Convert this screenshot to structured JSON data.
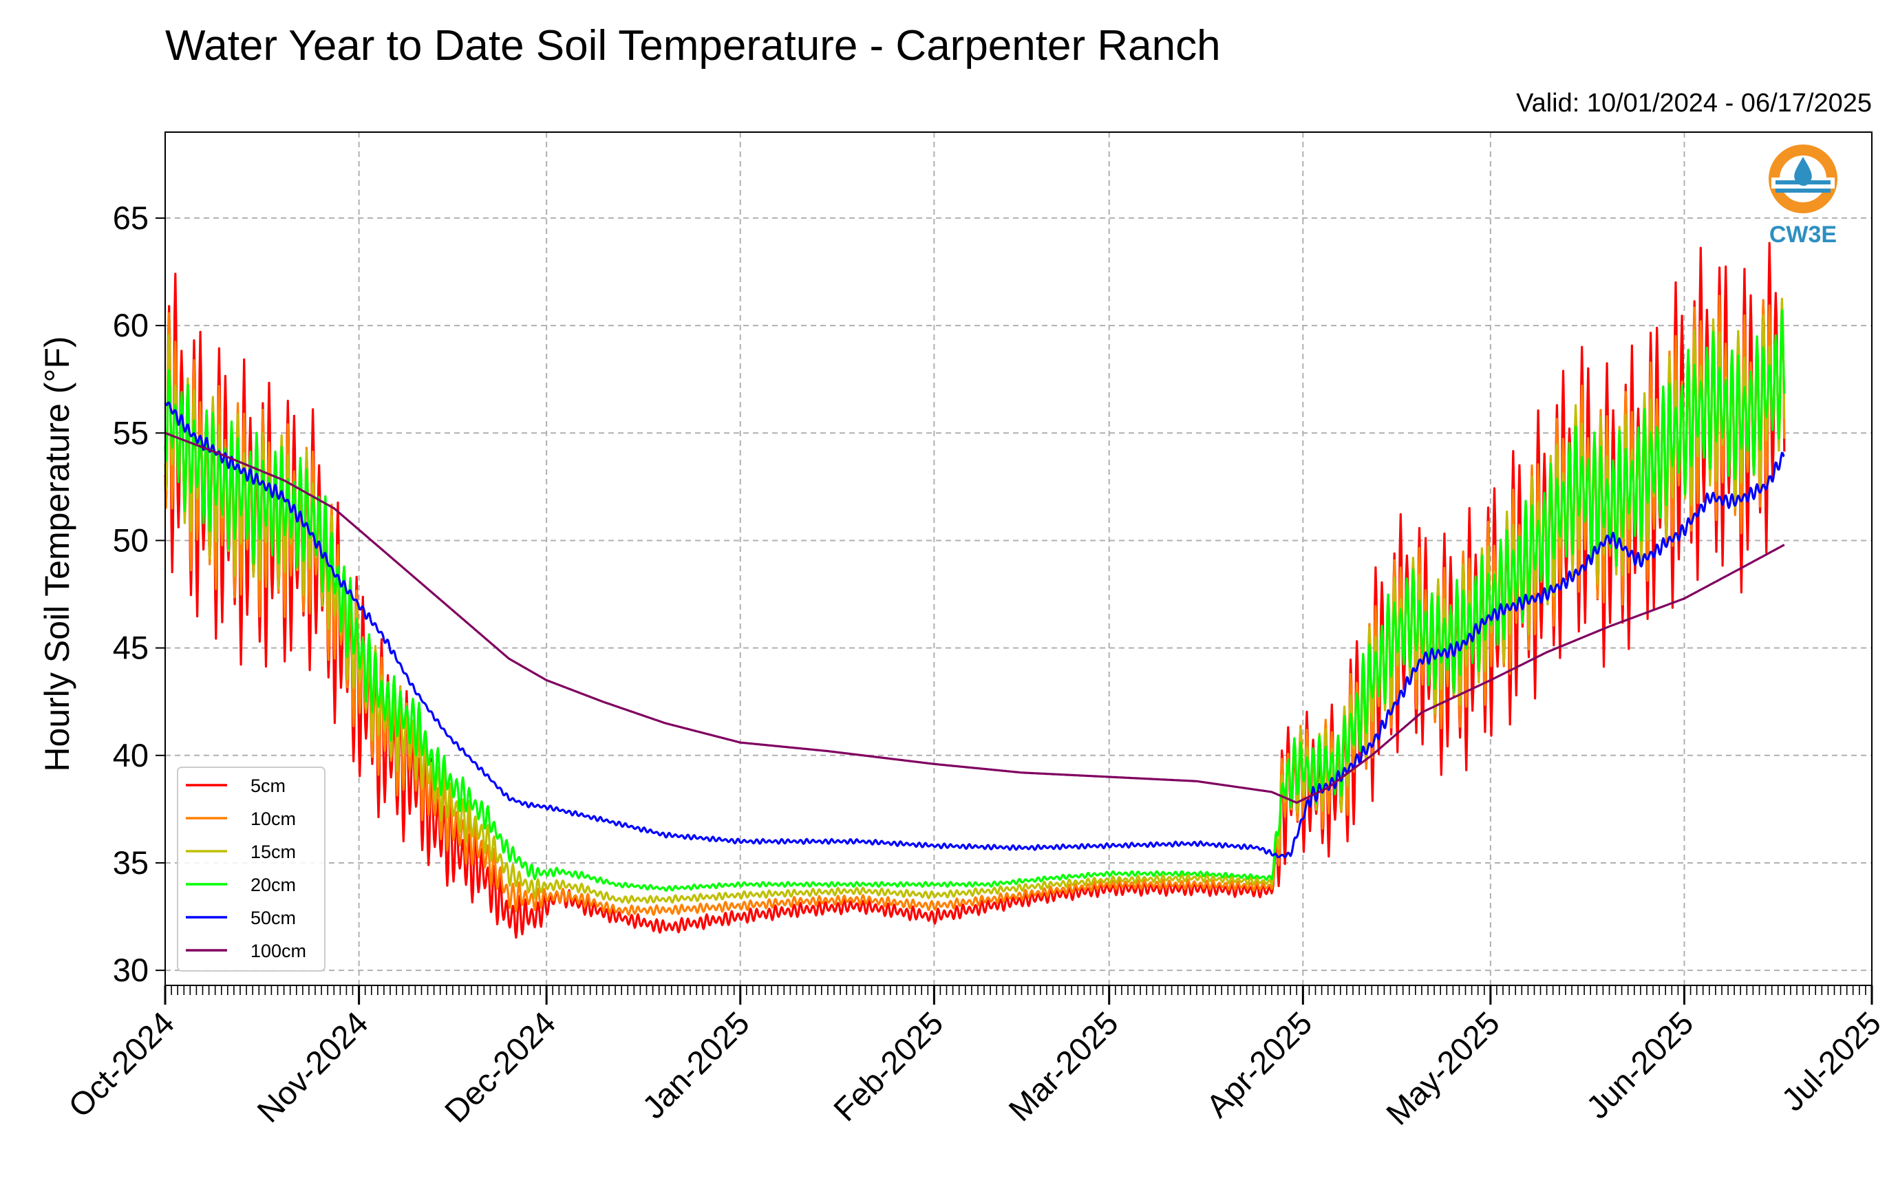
{
  "chart_data": {
    "type": "line",
    "title": "Water Year to Date Soil Temperature - Carpenter Ranch",
    "subtitle": "Valid: 10/01/2024 - 06/17/2025",
    "ylabel": "Hourly Soil Temperature (°F)",
    "xlabel": "",
    "xlim": [
      "2024-10-01",
      "2025-07-01"
    ],
    "ylim": [
      29.3,
      69
    ],
    "yticks": [
      30,
      35,
      40,
      45,
      50,
      55,
      60,
      65
    ],
    "xtick_labels": [
      "Oct-2024",
      "Nov-2024",
      "Dec-2024",
      "Jan-2025",
      "Feb-2025",
      "Mar-2025",
      "Apr-2025",
      "May-2025",
      "Jun-2025",
      "Jul-2025"
    ],
    "xtick_dates": [
      "2024-10-01",
      "2024-11-01",
      "2024-12-01",
      "2025-01-01",
      "2025-02-01",
      "2025-03-01",
      "2025-04-01",
      "2025-05-01",
      "2025-06-01",
      "2025-07-01"
    ],
    "grid": true,
    "legend_position": "bottom-left",
    "series": [
      {
        "name": "5cm",
        "color": "#ff0000",
        "x": [
          "2024-10-01",
          "2024-10-05",
          "2024-10-10",
          "2024-10-15",
          "2024-10-20",
          "2024-10-25",
          "2024-10-28",
          "2024-11-01",
          "2024-11-04",
          "2024-11-07",
          "2024-11-10",
          "2024-11-13",
          "2024-11-17",
          "2024-11-21",
          "2024-11-25",
          "2024-11-29",
          "2024-12-03",
          "2024-12-07",
          "2024-12-12",
          "2024-12-20",
          "2025-01-01",
          "2025-01-10",
          "2025-01-20",
          "2025-02-01",
          "2025-02-10",
          "2025-02-20",
          "2025-03-01",
          "2025-03-15",
          "2025-03-27",
          "2025-03-29",
          "2025-03-31",
          "2025-04-03",
          "2025-04-07",
          "2025-04-10",
          "2025-04-14",
          "2025-04-18",
          "2025-04-22",
          "2025-04-26",
          "2025-05-01",
          "2025-05-05",
          "2025-05-10",
          "2025-05-15",
          "2025-05-20",
          "2025-05-25",
          "2025-06-01",
          "2025-06-05",
          "2025-06-10",
          "2025-06-14",
          "2025-06-17"
        ],
        "y": [
          56.5,
          53.5,
          52.0,
          51.0,
          50.5,
          50.0,
          47.0,
          43.5,
          41.5,
          40.0,
          39.0,
          37.0,
          35.5,
          34.5,
          32.5,
          32.5,
          33.5,
          33.0,
          32.5,
          32.0,
          32.5,
          32.8,
          33.0,
          32.5,
          33.0,
          33.5,
          33.8,
          33.8,
          33.7,
          38.0,
          39.0,
          38.5,
          39.0,
          41.5,
          44.5,
          46.5,
          44.5,
          45.0,
          46.5,
          48.0,
          50.0,
          52.5,
          51.0,
          52.5,
          55.0,
          56.5,
          55.0,
          56.5,
          58.0
        ],
        "amp": [
          6.5,
          6.5,
          6.5,
          6.5,
          6.0,
          5.5,
          5.0,
          4.5,
          4.0,
          3.5,
          3.0,
          2.5,
          1.8,
          1.5,
          1.0,
          0.8,
          0.4,
          0.4,
          0.3,
          0.3,
          0.3,
          0.3,
          0.3,
          0.3,
          0.3,
          0.3,
          0.3,
          0.3,
          0.3,
          3.5,
          3.0,
          3.0,
          3.5,
          4.5,
          5.0,
          5.0,
          5.0,
          5.5,
          5.5,
          6.0,
          6.0,
          6.5,
          6.5,
          6.5,
          7.0,
          7.0,
          7.0,
          6.5,
          6.0
        ]
      },
      {
        "name": "10cm",
        "color": "#ff8000",
        "x": [
          "2024-10-01",
          "2024-10-05",
          "2024-10-10",
          "2024-10-15",
          "2024-10-20",
          "2024-10-25",
          "2024-10-28",
          "2024-11-01",
          "2024-11-04",
          "2024-11-07",
          "2024-11-10",
          "2024-11-13",
          "2024-11-17",
          "2024-11-21",
          "2024-11-25",
          "2024-11-29",
          "2024-12-03",
          "2024-12-07",
          "2024-12-12",
          "2024-12-20",
          "2025-01-01",
          "2025-01-10",
          "2025-01-20",
          "2025-02-01",
          "2025-02-10",
          "2025-02-20",
          "2025-03-01",
          "2025-03-15",
          "2025-03-27",
          "2025-03-29",
          "2025-03-31",
          "2025-04-03",
          "2025-04-07",
          "2025-04-10",
          "2025-04-14",
          "2025-04-18",
          "2025-04-22",
          "2025-04-26",
          "2025-05-01",
          "2025-05-05",
          "2025-05-10",
          "2025-05-15",
          "2025-05-20",
          "2025-05-25",
          "2025-06-01",
          "2025-06-05",
          "2025-06-10",
          "2025-06-14",
          "2025-06-17"
        ],
        "y": [
          56.3,
          53.6,
          52.3,
          51.4,
          51.0,
          50.3,
          47.5,
          44.0,
          42.0,
          40.8,
          40.0,
          38.0,
          36.5,
          35.5,
          33.5,
          33.3,
          33.5,
          33.3,
          32.8,
          32.8,
          33.0,
          33.2,
          33.3,
          33.0,
          33.3,
          33.7,
          34.0,
          34.0,
          33.9,
          38.5,
          39.2,
          39.0,
          39.3,
          41.8,
          44.5,
          46.5,
          44.8,
          45.3,
          46.8,
          48.3,
          50.2,
          52.5,
          51.3,
          52.7,
          55.2,
          56.5,
          55.3,
          56.6,
          58.0
        ],
        "amp": [
          4.5,
          4.5,
          4.5,
          4.5,
          4.2,
          3.8,
          3.5,
          3.0,
          2.8,
          2.5,
          2.2,
          1.8,
          1.3,
          1.0,
          0.7,
          0.5,
          0.3,
          0.3,
          0.2,
          0.2,
          0.2,
          0.2,
          0.2,
          0.2,
          0.2,
          0.2,
          0.2,
          0.2,
          0.2,
          2.5,
          2.2,
          2.2,
          2.5,
          3.2,
          3.5,
          3.5,
          3.5,
          3.8,
          3.8,
          4.0,
          4.2,
          4.5,
          4.5,
          4.5,
          4.8,
          4.8,
          4.8,
          4.5,
          4.2
        ]
      },
      {
        "name": "15cm",
        "color": "#bfbf00",
        "x": [
          "2024-10-01",
          "2024-10-05",
          "2024-10-10",
          "2024-10-15",
          "2024-10-20",
          "2024-10-25",
          "2024-10-28",
          "2024-11-01",
          "2024-11-04",
          "2024-11-07",
          "2024-11-10",
          "2024-11-13",
          "2024-11-17",
          "2024-11-21",
          "2024-11-25",
          "2024-11-29",
          "2024-12-03",
          "2024-12-07",
          "2024-12-12",
          "2024-12-20",
          "2025-01-01",
          "2025-01-10",
          "2025-01-20",
          "2025-02-01",
          "2025-02-10",
          "2025-02-20",
          "2025-03-01",
          "2025-03-15",
          "2025-03-27",
          "2025-03-29",
          "2025-03-31",
          "2025-04-03",
          "2025-04-07",
          "2025-04-10",
          "2025-04-14",
          "2025-04-18",
          "2025-04-22",
          "2025-04-26",
          "2025-05-01",
          "2025-05-05",
          "2025-05-10",
          "2025-05-15",
          "2025-05-20",
          "2025-05-25",
          "2025-06-01",
          "2025-06-05",
          "2025-06-10",
          "2025-06-14",
          "2025-06-17"
        ],
        "y": [
          56.2,
          53.8,
          52.5,
          51.7,
          51.3,
          50.6,
          48.0,
          44.5,
          42.5,
          41.3,
          40.7,
          38.8,
          37.3,
          36.3,
          34.5,
          33.8,
          34.0,
          33.8,
          33.3,
          33.3,
          33.5,
          33.6,
          33.7,
          33.5,
          33.7,
          34.0,
          34.2,
          34.3,
          34.1,
          38.6,
          39.3,
          39.2,
          39.5,
          42.0,
          44.6,
          46.5,
          45.0,
          45.5,
          47.0,
          48.4,
          50.3,
          52.6,
          51.5,
          52.8,
          55.3,
          56.5,
          55.5,
          56.7,
          58.0
        ],
        "amp": [
          3.5,
          3.5,
          3.5,
          3.5,
          3.3,
          3.0,
          2.7,
          2.3,
          2.1,
          1.9,
          1.7,
          1.4,
          1.0,
          0.8,
          0.5,
          0.4,
          0.2,
          0.2,
          0.15,
          0.15,
          0.15,
          0.15,
          0.15,
          0.15,
          0.15,
          0.15,
          0.15,
          0.15,
          0.15,
          2.0,
          1.8,
          1.8,
          2.0,
          2.5,
          2.8,
          2.8,
          2.8,
          3.0,
          3.0,
          3.2,
          3.4,
          3.6,
          3.6,
          3.6,
          3.8,
          3.8,
          3.8,
          3.6,
          3.4
        ]
      },
      {
        "name": "20cm",
        "color": "#00ff00",
        "x": [
          "2024-10-01",
          "2024-10-05",
          "2024-10-10",
          "2024-10-15",
          "2024-10-20",
          "2024-10-25",
          "2024-10-28",
          "2024-11-01",
          "2024-11-04",
          "2024-11-07",
          "2024-11-10",
          "2024-11-13",
          "2024-11-17",
          "2024-11-21",
          "2024-11-25",
          "2024-11-29",
          "2024-12-03",
          "2024-12-07",
          "2024-12-12",
          "2024-12-20",
          "2025-01-01",
          "2025-01-10",
          "2025-01-20",
          "2025-02-01",
          "2025-02-10",
          "2025-02-20",
          "2025-03-01",
          "2025-03-15",
          "2025-03-27",
          "2025-03-29",
          "2025-03-31",
          "2025-04-03",
          "2025-04-07",
          "2025-04-10",
          "2025-04-14",
          "2025-04-18",
          "2025-04-22",
          "2025-04-26",
          "2025-05-01",
          "2025-05-05",
          "2025-05-10",
          "2025-05-15",
          "2025-05-20",
          "2025-05-25",
          "2025-06-01",
          "2025-06-05",
          "2025-06-10",
          "2025-06-14",
          "2025-06-17"
        ],
        "y": [
          56.0,
          54.0,
          52.8,
          52.0,
          51.6,
          51.0,
          48.5,
          45.0,
          43.0,
          42.0,
          41.5,
          39.5,
          38.3,
          37.3,
          35.5,
          34.5,
          34.6,
          34.4,
          34.0,
          33.8,
          34.0,
          34.0,
          34.0,
          34.0,
          34.0,
          34.3,
          34.5,
          34.5,
          34.3,
          38.8,
          39.4,
          39.3,
          39.6,
          42.2,
          44.8,
          46.5,
          45.2,
          45.6,
          47.1,
          48.5,
          50.4,
          52.6,
          51.6,
          52.9,
          55.4,
          56.6,
          55.6,
          56.8,
          58.0
        ],
        "amp": [
          2.8,
          2.8,
          2.8,
          2.8,
          2.6,
          2.3,
          2.1,
          1.8,
          1.6,
          1.4,
          1.3,
          1.1,
          0.8,
          0.6,
          0.4,
          0.3,
          0.15,
          0.15,
          0.1,
          0.1,
          0.1,
          0.1,
          0.1,
          0.1,
          0.1,
          0.1,
          0.1,
          0.1,
          0.1,
          1.5,
          1.4,
          1.4,
          1.5,
          2.0,
          2.2,
          2.2,
          2.2,
          2.4,
          2.4,
          2.5,
          2.6,
          2.8,
          2.8,
          2.8,
          3.0,
          3.0,
          3.0,
          2.8,
          2.6
        ]
      },
      {
        "name": "50cm",
        "color": "#0000ff",
        "x": [
          "2024-10-01",
          "2024-10-05",
          "2024-10-12",
          "2024-10-20",
          "2024-10-24",
          "2024-10-28",
          "2024-11-01",
          "2024-11-05",
          "2024-11-10",
          "2024-11-15",
          "2024-11-20",
          "2024-11-25",
          "2024-11-28",
          "2024-12-01",
          "2024-12-10",
          "2024-12-20",
          "2025-01-01",
          "2025-01-12",
          "2025-01-20",
          "2025-02-01",
          "2025-02-15",
          "2025-03-01",
          "2025-03-15",
          "2025-03-25",
          "2025-03-28",
          "2025-03-30",
          "2025-04-02",
          "2025-04-07",
          "2025-04-12",
          "2025-04-17",
          "2025-04-20",
          "2025-04-26",
          "2025-05-01",
          "2025-05-05",
          "2025-05-10",
          "2025-05-15",
          "2025-05-20",
          "2025-05-25",
          "2025-06-01",
          "2025-06-05",
          "2025-06-09",
          "2025-06-14",
          "2025-06-17"
        ],
        "y": [
          56.5,
          55.0,
          53.5,
          52.0,
          50.5,
          48.5,
          47.0,
          45.5,
          43.0,
          41.0,
          39.5,
          38.0,
          37.7,
          37.6,
          37.0,
          36.3,
          36.0,
          36.0,
          36.0,
          35.8,
          35.7,
          35.8,
          35.9,
          35.7,
          35.3,
          35.4,
          38.0,
          39.0,
          40.5,
          43.0,
          44.5,
          45.0,
          46.5,
          47.0,
          47.5,
          48.5,
          50.2,
          49.0,
          50.5,
          52.0,
          51.8,
          52.5,
          54.0
        ],
        "amp": [
          0.3,
          0.3,
          0.3,
          0.3,
          0.3,
          0.2,
          0.2,
          0.2,
          0.1,
          0.1,
          0.1,
          0.1,
          0.1,
          0.1,
          0.1,
          0.1,
          0.1,
          0.1,
          0.1,
          0.1,
          0.1,
          0.1,
          0.1,
          0.1,
          0.1,
          0.1,
          0.4,
          0.3,
          0.3,
          0.3,
          0.3,
          0.3,
          0.3,
          0.3,
          0.3,
          0.3,
          0.3,
          0.3,
          0.3,
          0.3,
          0.3,
          0.3,
          0.3
        ]
      },
      {
        "name": "100cm",
        "color": "#800060",
        "x": [
          "2024-10-01",
          "2024-10-10",
          "2024-10-20",
          "2024-10-28",
          "2024-11-05",
          "2024-11-15",
          "2024-11-25",
          "2024-12-01",
          "2024-12-10",
          "2024-12-20",
          "2025-01-01",
          "2025-01-15",
          "2025-02-01",
          "2025-02-15",
          "2025-03-01",
          "2025-03-15",
          "2025-03-27",
          "2025-03-31",
          "2025-04-05",
          "2025-04-12",
          "2025-04-20",
          "2025-05-01",
          "2025-05-10",
          "2025-05-20",
          "2025-06-01",
          "2025-06-10",
          "2025-06-17"
        ],
        "y": [
          55.0,
          54.0,
          52.8,
          51.5,
          49.5,
          47.0,
          44.5,
          43.5,
          42.5,
          41.5,
          40.6,
          40.2,
          39.6,
          39.2,
          39.0,
          38.8,
          38.3,
          37.8,
          38.5,
          40.0,
          42.0,
          43.5,
          44.8,
          46.0,
          47.3,
          48.7,
          49.8
        ],
        "amp": [
          0,
          0,
          0,
          0,
          0,
          0,
          0,
          0,
          0,
          0,
          0,
          0,
          0,
          0,
          0,
          0,
          0,
          0,
          0,
          0,
          0,
          0,
          0,
          0,
          0,
          0,
          0
        ]
      }
    ]
  },
  "logo": {
    "text": "CW3E"
  },
  "colors": {
    "grid": "#b0b0b0",
    "axis": "#000000",
    "logo_ring": "#f39321",
    "logo_blue": "#2e8fc2"
  }
}
